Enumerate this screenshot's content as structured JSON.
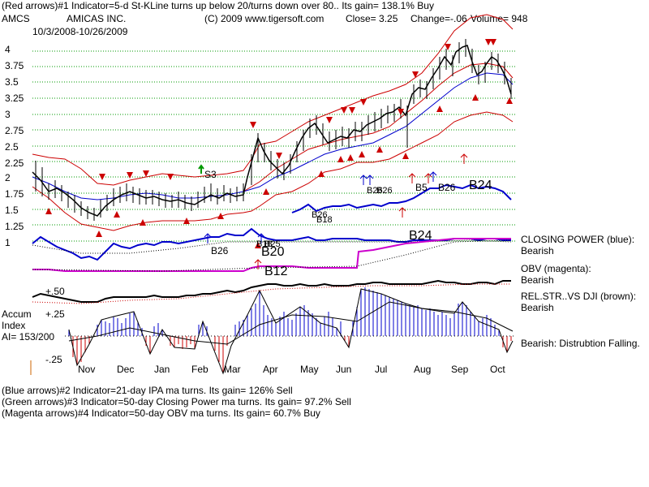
{
  "header": {
    "line1": "(Red arrows)#1 Indicator=5-d St-KLine turns up below 20/turns down over 80.. Its gain= 138.1% Buy",
    "ticker": "AMCS",
    "company": "AMICAS INC.",
    "copyright": "(C) 2009 www.tigersoft.com",
    "close": "Close=  3.25",
    "change": "Change=-.06",
    "volume": "Volume=  948",
    "date_range": "10/3/2008-10/26/2009"
  },
  "price_axis": [
    "4",
    "3.75",
    "3.5",
    "3.25",
    "3",
    "2.75",
    "2.5",
    "2.25",
    "2",
    "1.75",
    "1.5",
    "1.25",
    "1"
  ],
  "months": [
    "Nov",
    "Dec",
    "Jan",
    "Feb",
    "Mar",
    "Apr",
    "May",
    "Jun",
    "Jul",
    "Aug",
    "Sep",
    "Oct"
  ],
  "chart_labels": {
    "s3": "S3",
    "b26a": "B26",
    "b26b": "B26",
    "b5": "B5",
    "b26c": "B26",
    "b24a": "B24",
    "b26d": "B26",
    "b18": "B18",
    "b26e": "B26",
    "b18b": "B18",
    "b25": "B25",
    "b24b": "B24",
    "b20": "B20",
    "b12": "B12"
  },
  "right_labels": {
    "cp1": "CLOSING POWER (blue):",
    "cp2": "Bearish",
    "obv1": "OBV (magenta):",
    "obv2": "Bearish",
    "rs1": "REL.STR..VS DJI (brown):",
    "rs2": "Bearish",
    "ai": "Bearish:  Distrubtion Falling."
  },
  "accum": {
    "title1": "Accum",
    "title2": "Index",
    "ai": "AI= 153/200",
    "plus50": "+.50",
    "plus25": "+.25",
    "minus25": "-.25"
  },
  "footer": {
    "line1": "(Blue arrows)#2 Indicator=21-day IPA ma turns. Its gain= 126% Sell",
    "line2": "(Green arrows)#3 Indicator=50-day Closing Power ma turns. Its gain= 97.2% Sell",
    "line3": "(Magenta arrows)#4 Indicator=50-day OBV ma turns. Its gain= 60.7% Buy"
  },
  "colors": {
    "price": "#000000",
    "band": "#cc0000",
    "ma": "#0000cc",
    "closing_power": "#0000cc",
    "obv": "#cc00cc",
    "relstr": "#000000",
    "accum_pos": "#0000cc",
    "accum_neg": "#cc0000",
    "grid": "#009900"
  },
  "chart_data": {
    "type": "line",
    "xlabel": "",
    "ylabel": "",
    "x": [
      "Nov",
      "Dec",
      "Jan",
      "Feb",
      "Mar",
      "Apr",
      "May",
      "Jun",
      "Jul",
      "Aug",
      "Sep",
      "Oct"
    ],
    "ylim": [
      1,
      4
    ],
    "series": [
      {
        "values": [
          1.65,
          1.55,
          1.7,
          1.65,
          1.72,
          2.4,
          2.45,
          2.6,
          2.7,
          3.3,
          3.6,
          3.25
        ]
      }
    ]
  }
}
